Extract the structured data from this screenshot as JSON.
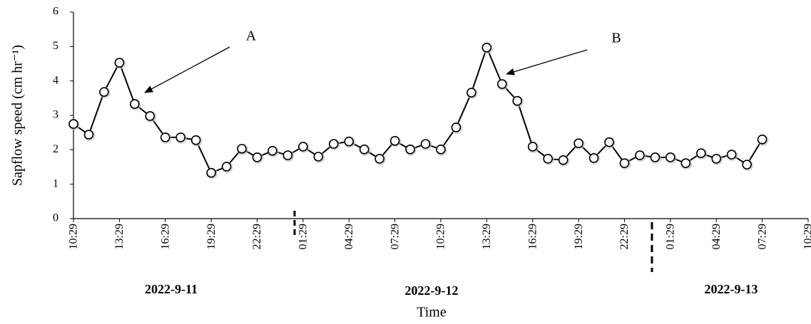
{
  "chart_data": {
    "type": "line",
    "y_label": "Sapflow speed (cm hr⁻¹)",
    "x_label": "Time",
    "date_labels": [
      "2022-9-11",
      "2022-9-12",
      "2022-9-13"
    ],
    "annotations": [
      "A",
      "B"
    ],
    "categories": [
      "10:29",
      null,
      null,
      "13:29",
      null,
      null,
      "16:29",
      null,
      null,
      "19:29",
      null,
      null,
      "22:29",
      null,
      null,
      "01:29",
      null,
      null,
      "04:29",
      null,
      null,
      "07:29",
      null,
      null,
      "10:29",
      null,
      null,
      "13:29",
      null,
      null,
      "16:29",
      null,
      null,
      "19:29",
      null,
      null,
      "22:29",
      null,
      null,
      "01:29",
      null,
      null,
      "04:29",
      null,
      null,
      "07:29",
      null,
      null,
      "10:29"
    ],
    "series": [
      {
        "color": "#000000",
        "values": [
          2.75,
          2.44,
          3.68,
          4.53,
          3.33,
          2.98,
          2.36,
          2.36,
          2.28,
          1.33,
          1.51,
          2.03,
          1.78,
          1.97,
          1.84,
          2.09,
          1.8,
          2.17,
          2.24,
          2.01,
          1.74,
          2.26,
          2.01,
          2.17,
          2.01,
          2.65,
          3.66,
          4.97,
          3.91,
          3.42,
          2.09,
          1.74,
          1.7,
          2.19,
          1.76,
          2.22,
          1.61,
          1.84,
          1.78,
          1.78,
          1.61,
          1.9,
          1.74,
          1.86,
          1.57,
          2.3,
          null,
          null,
          null
        ]
      }
    ],
    "ylim": [
      0,
      6
    ],
    "yticks": [
      0,
      1,
      2,
      3,
      4,
      5,
      6
    ],
    "grid": false
  }
}
